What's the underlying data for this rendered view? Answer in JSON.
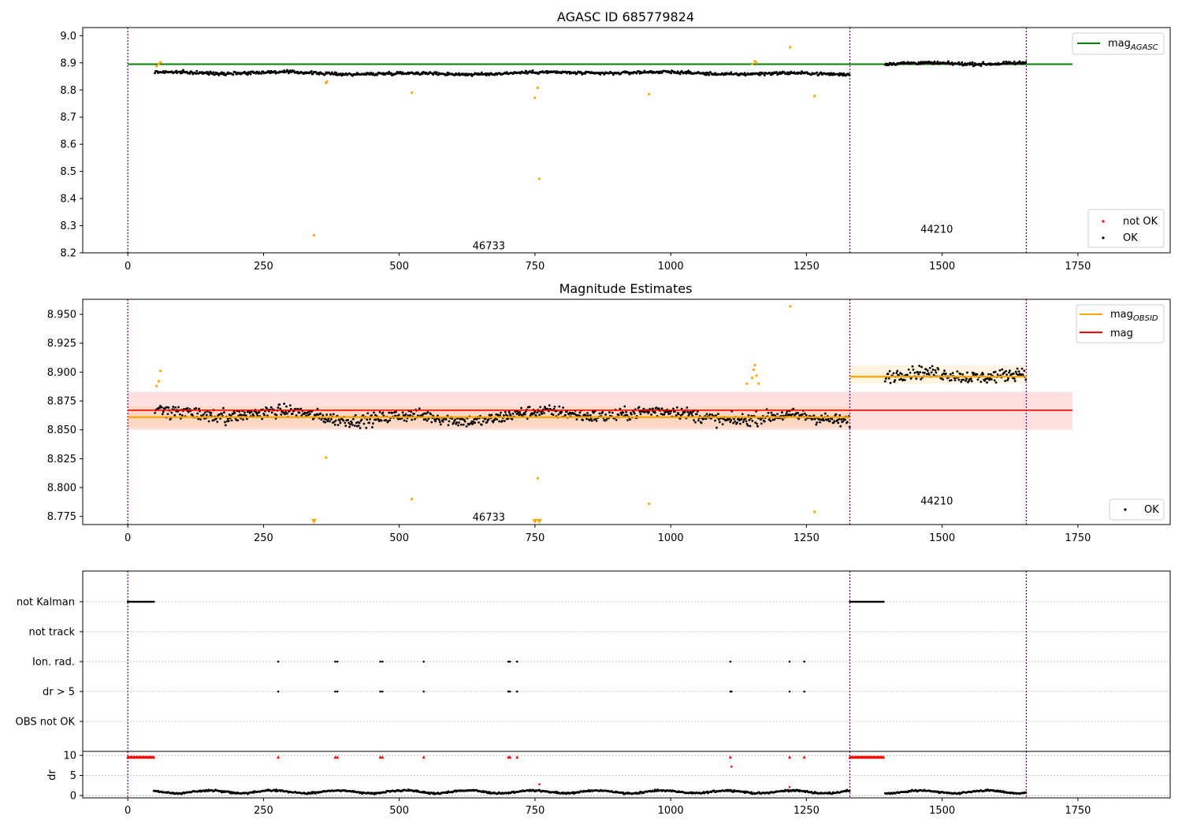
{
  "chart_data": [
    {
      "type": "scatter",
      "title": "AGASC ID 685779824",
      "xlim": [
        -83,
        1920
      ],
      "ylim": [
        8.2,
        9.03
      ],
      "xticks": [
        0,
        250,
        500,
        750,
        1000,
        1250,
        1500,
        1750
      ],
      "yticks": [
        8.2,
        8.3,
        8.4,
        8.5,
        8.6,
        8.7,
        8.8,
        8.9,
        9.0
      ],
      "ytick_labels": [
        "8.2",
        "8.3",
        "8.4",
        "8.5",
        "8.6",
        "8.7",
        "8.8",
        "8.9",
        "9.0"
      ],
      "obs_boundaries": [
        0,
        1330,
        1655
      ],
      "obs_labels": [
        {
          "text": "46733",
          "x": 665,
          "y": 8.225
        },
        {
          "text": "44210",
          "x": 1490,
          "y": 8.285
        }
      ],
      "agasc_line": {
        "value": 8.895,
        "x_range": [
          0,
          1740
        ],
        "color": "#008000"
      },
      "ok_segments": [
        {
          "x_start": 50,
          "x_end": 1330,
          "base": 8.862,
          "amplitude": 0.012
        },
        {
          "x_start": 1395,
          "x_end": 1655,
          "base": 8.896,
          "amplitude": 0.012
        }
      ],
      "outliers": [
        [
          53,
          8.888
        ],
        [
          57,
          8.896
        ],
        [
          60,
          8.902
        ],
        [
          365,
          8.826
        ],
        [
          367,
          8.831
        ],
        [
          523,
          8.79
        ],
        [
          343,
          8.265
        ],
        [
          750,
          8.771
        ],
        [
          755,
          8.808
        ],
        [
          758,
          8.473
        ],
        [
          960,
          8.785
        ],
        [
          1150,
          8.896
        ],
        [
          1155,
          8.906
        ],
        [
          1158,
          8.9
        ],
        [
          1220,
          8.957
        ],
        [
          1265,
          8.778
        ]
      ],
      "legend_upper": [
        {
          "label": "mag",
          "subscript": "AGASC",
          "color": "#008000",
          "kind": "line"
        }
      ],
      "legend_lower": [
        {
          "label": "not OK",
          "color": "#ff0000",
          "kind": "marker"
        },
        {
          "label": "OK",
          "color": "#000000",
          "kind": "marker"
        }
      ],
      "colors": {
        "ok": "#000000",
        "outlier": "#ffa500",
        "boundary": "#800080"
      }
    },
    {
      "type": "scatter",
      "title": "Magnitude Estimates",
      "xlim": [
        -83,
        1920
      ],
      "ylim": [
        8.768,
        8.963
      ],
      "xticks": [
        0,
        250,
        500,
        750,
        1000,
        1250,
        1500,
        1750
      ],
      "yticks": [
        8.775,
        8.8,
        8.825,
        8.85,
        8.875,
        8.9,
        8.925,
        8.95
      ],
      "ytick_labels": [
        "8.775",
        "8.800",
        "8.825",
        "8.850",
        "8.875",
        "8.900",
        "8.925",
        "8.950"
      ],
      "obs_boundaries": [
        0,
        1330,
        1655
      ],
      "obs_labels": [
        {
          "text": "46733",
          "x": 665,
          "y": 8.774
        },
        {
          "text": "44210",
          "x": 1490,
          "y": 8.788
        }
      ],
      "mag_line": {
        "value": 8.867,
        "band": [
          8.85,
          8.883
        ],
        "x_range": [
          0,
          1740
        ],
        "color": "#ff0000"
      },
      "obsid_lines": [
        {
          "value": 8.861,
          "band": [
            8.852,
            8.87
          ],
          "x_range": [
            0,
            1330
          ]
        },
        {
          "value": 8.896,
          "band": [
            8.89,
            8.906
          ],
          "x_range": [
            1330,
            1655
          ]
        }
      ],
      "ok_segments": [
        {
          "x_start": 50,
          "x_end": 1330,
          "base": 8.862,
          "amplitude": 0.012
        },
        {
          "x_start": 1395,
          "x_end": 1655,
          "base": 8.896,
          "amplitude": 0.012
        }
      ],
      "outliers": [
        [
          53,
          8.888
        ],
        [
          57,
          8.892
        ],
        [
          60,
          8.901
        ],
        [
          365,
          8.826
        ],
        [
          523,
          8.79
        ],
        [
          755,
          8.808
        ],
        [
          960,
          8.786
        ],
        [
          1140,
          8.89
        ],
        [
          1150,
          8.895
        ],
        [
          1153,
          8.902
        ],
        [
          1155,
          8.906
        ],
        [
          1158,
          8.897
        ],
        [
          1162,
          8.89
        ],
        [
          1220,
          8.957
        ],
        [
          1265,
          8.779
        ]
      ],
      "clipped_markers": [
        343,
        750,
        758
      ],
      "legend_upper": [
        {
          "label": "mag",
          "subscript": "OBSID",
          "color": "#ffa500",
          "kind": "line"
        },
        {
          "label": "mag",
          "subscript": "",
          "color": "#ff0000",
          "kind": "line"
        }
      ],
      "legend_lower": [
        {
          "label": "OK",
          "color": "#000000",
          "kind": "marker"
        }
      ],
      "colors": {
        "ok": "#000000",
        "outlier": "#ffa500",
        "boundary": "#800080"
      }
    },
    {
      "type": "scatter",
      "title": "",
      "xlim": [
        -83,
        1920
      ],
      "flag_rows": [
        {
          "label": "not Kalman",
          "x": [
            0,
            2,
            4,
            6,
            8,
            10,
            12,
            14,
            16,
            18,
            20,
            22,
            24,
            26,
            28,
            30,
            32,
            34,
            36,
            38,
            40,
            42,
            44,
            46,
            48,
            1330,
            1332,
            1334,
            1336,
            1338,
            1340,
            1342,
            1344,
            1346,
            1348,
            1350,
            1352,
            1354,
            1356,
            1358,
            1360,
            1362,
            1364,
            1366,
            1368,
            1370,
            1372,
            1374,
            1376,
            1378,
            1380,
            1382,
            1384,
            1386,
            1388,
            1390,
            1392
          ]
        },
        {
          "label": "not track",
          "x": []
        },
        {
          "label": "Ion. rad.",
          "x": [
            277,
            382,
            386,
            465,
            469,
            545,
            701,
            704,
            717,
            1110,
            1219,
            1246
          ]
        },
        {
          "label": "dr > 5",
          "x": [
            277,
            382,
            386,
            465,
            469,
            545,
            701,
            704,
            717,
            1110,
            1112,
            1219,
            1246
          ]
        },
        {
          "label": "OBS not OK",
          "x": []
        }
      ],
      "colors": {
        "flag": "#000000",
        "grid": "#b0b0b0",
        "boundary": "#800080"
      }
    },
    {
      "type": "scatter",
      "title": "",
      "ylabel": "dr",
      "xlim": [
        -83,
        1920
      ],
      "ylim": [
        -0.6,
        11
      ],
      "xticks": [
        0,
        250,
        500,
        750,
        1000,
        1250,
        1500,
        1750
      ],
      "yticks": [
        0,
        5,
        10
      ],
      "ytick_labels": [
        "0",
        "5",
        "10"
      ],
      "segments": [
        {
          "x_start": 48,
          "x_end": 1330,
          "base": 0.9,
          "amplitude": 0.5
        },
        {
          "x_start": 1395,
          "x_end": 1655,
          "base": 0.9,
          "amplitude": 0.5
        }
      ],
      "red_markers_x": [
        0,
        2,
        4,
        6,
        8,
        10,
        12,
        14,
        16,
        18,
        20,
        22,
        24,
        26,
        28,
        30,
        32,
        34,
        36,
        38,
        40,
        42,
        44,
        46,
        48,
        277,
        382,
        386,
        465,
        469,
        545,
        701,
        704,
        717,
        1110,
        1219,
        1246,
        1330,
        1332,
        1334,
        1336,
        1338,
        1340,
        1342,
        1344,
        1346,
        1348,
        1350,
        1352,
        1354,
        1356,
        1358,
        1360,
        1362,
        1364,
        1366,
        1368,
        1370,
        1372,
        1374,
        1376,
        1378,
        1380,
        1382,
        1384,
        1386,
        1388,
        1390,
        1392
      ],
      "red_marker_value": 9.6,
      "extra_points": [
        [
          1112,
          7.2
        ],
        [
          758,
          2.8
        ],
        [
          1219,
          2.1
        ]
      ],
      "colors": {
        "point": "#000000",
        "red": "#ff0000",
        "boundary": "#800080"
      }
    }
  ]
}
